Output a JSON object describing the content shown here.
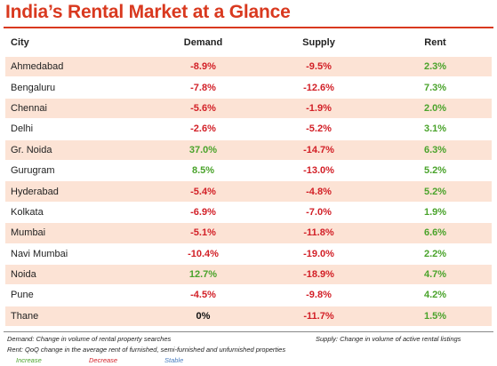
{
  "title": "India’s Rental Market at a Glance",
  "colors": {
    "accent": "#d9391f",
    "increase": "#4aa32b",
    "decrease": "#d21f26",
    "stable": "#4a7ec0",
    "row_shade": "#fce3d5"
  },
  "chart_data": {
    "type": "table",
    "columns": [
      "City",
      "Demand",
      "Supply",
      "Rent"
    ],
    "rows": [
      {
        "city": "Ahmedabad",
        "demand": "-8.9%",
        "supply": "-9.5%",
        "rent": "2.3%"
      },
      {
        "city": "Bengaluru",
        "demand": "-7.8%",
        "supply": "-12.6%",
        "rent": "7.3%"
      },
      {
        "city": "Chennai",
        "demand": "-5.6%",
        "supply": "-1.9%",
        "rent": "2.0%"
      },
      {
        "city": "Delhi",
        "demand": "-2.6%",
        "supply": "-5.2%",
        "rent": "3.1%"
      },
      {
        "city": "Gr. Noida",
        "demand": "37.0%",
        "supply": "-14.7%",
        "rent": "6.3%"
      },
      {
        "city": "Gurugram",
        "demand": "8.5%",
        "supply": "-13.0%",
        "rent": "5.2%"
      },
      {
        "city": "Hyderabad",
        "demand": "-5.4%",
        "supply": "-4.8%",
        "rent": "5.2%"
      },
      {
        "city": "Kolkata",
        "demand": "-6.9%",
        "supply": "-7.0%",
        "rent": "1.9%"
      },
      {
        "city": "Mumbai",
        "demand": "-5.1%",
        "supply": "-11.8%",
        "rent": "6.6%"
      },
      {
        "city": "Navi Mumbai",
        "demand": "-10.4%",
        "supply": "-19.0%",
        "rent": "2.2%"
      },
      {
        "city": "Noida",
        "demand": "12.7%",
        "supply": "-18.9%",
        "rent": "4.7%"
      },
      {
        "city": "Pune",
        "demand": "-4.5%",
        "supply": "-9.8%",
        "rent": "4.2%"
      },
      {
        "city": "Thane",
        "demand": "0%",
        "supply": "-11.7%",
        "rent": "1.5%"
      }
    ]
  },
  "notes": {
    "demand": "Demand: Change in volume of rental property searches",
    "supply": "Supply: Change in volume of active rental listings",
    "rent": "Rent: QoQ change in the average rent of furnished, semi-furnished and unfurnished properties"
  },
  "legend": {
    "increase": "Increase",
    "decrease": "Decrease",
    "stable": "Stable"
  }
}
